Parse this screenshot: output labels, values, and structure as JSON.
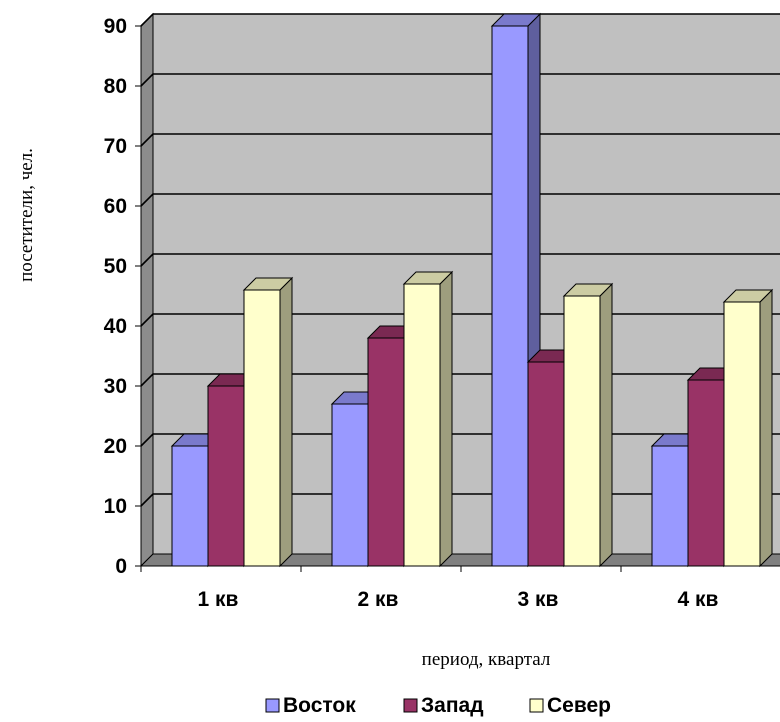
{
  "chart_data": {
    "type": "bar",
    "title": "",
    "categories": [
      "1 кв",
      "2 кв",
      "3 кв",
      "4 кв"
    ],
    "series": [
      {
        "name": "Восток",
        "values": [
          20,
          27,
          90,
          20
        ]
      },
      {
        "name": "Запад",
        "values": [
          30,
          38,
          34,
          31
        ]
      },
      {
        "name": "Север",
        "values": [
          46,
          47,
          45,
          44
        ]
      }
    ],
    "xlabel": "период, квартал",
    "ylabel": "посетители, чел.",
    "ylim": [
      0,
      90
    ],
    "yticks": [
      0,
      10,
      20,
      30,
      40,
      50,
      60,
      70,
      80,
      90
    ],
    "grid": true,
    "legend_position": "bottom",
    "style": "3d-clustered-column"
  },
  "colors": {
    "Восток": "#9999ff",
    "Запад": "#993366",
    "Север": "#ffffcc",
    "wall": "#c0c0c0",
    "side_wall": "#8c8c8c",
    "floor": "#808080"
  }
}
